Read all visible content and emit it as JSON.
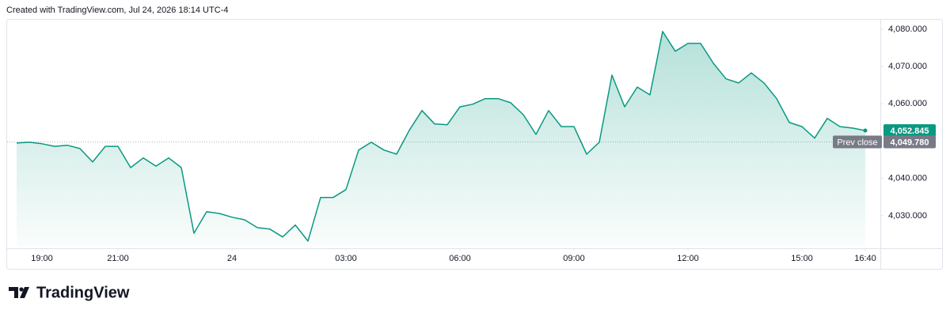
{
  "header": {
    "text": "Created with TradingView.com, Jul 24, 2026 18:14 UTC-4"
  },
  "footer": {
    "brand": "TradingView"
  },
  "chart_data": {
    "type": "area",
    "x": [
      "18:20",
      "18:40",
      "19:00",
      "19:20",
      "19:40",
      "20:00",
      "20:20",
      "20:40",
      "21:00",
      "21:20",
      "21:40",
      "22:00",
      "22:20",
      "22:40",
      "23:00",
      "23:20",
      "23:40",
      "00:00",
      "00:20",
      "00:40",
      "01:00",
      "01:20",
      "01:40",
      "02:00",
      "02:20",
      "02:40",
      "03:00",
      "03:20",
      "03:40",
      "04:00",
      "04:20",
      "04:40",
      "05:00",
      "05:20",
      "05:40",
      "06:00",
      "06:20",
      "06:40",
      "07:00",
      "07:20",
      "07:40",
      "08:00",
      "08:20",
      "08:40",
      "09:00",
      "09:20",
      "09:40",
      "10:00",
      "10:20",
      "10:40",
      "11:00",
      "11:20",
      "11:40",
      "12:00",
      "12:20",
      "12:40",
      "13:00",
      "13:20",
      "13:40",
      "14:00",
      "14:20",
      "14:40",
      "15:00",
      "15:20",
      "15:40",
      "16:00",
      "16:20",
      "16:40"
    ],
    "series": [
      {
        "color": "#089981",
        "values": [
          4049.5,
          4049.7,
          4049.3,
          4048.6,
          4048.9,
          4048.0,
          4044.4,
          4048.6,
          4048.6,
          4042.9,
          4045.5,
          4043.3,
          4045.5,
          4042.9,
          4025.3,
          4031.1,
          4030.6,
          4029.6,
          4028.9,
          4026.8,
          4026.4,
          4024.3,
          4027.5,
          4023.2,
          4034.9,
          4034.9,
          4037.0,
          4047.6,
          4049.7,
          4047.6,
          4046.5,
          4052.9,
          4058.2,
          4054.6,
          4054.4,
          4059.2,
          4059.9,
          4061.4,
          4061.4,
          4060.3,
          4057.1,
          4051.8,
          4058.2,
          4053.9,
          4053.9,
          4046.5,
          4049.7,
          4067.7,
          4059.2,
          4064.5,
          4062.4,
          4079.4,
          4074.1,
          4076.2,
          4076.2,
          4070.9,
          4066.7,
          4065.6,
          4068.3,
          4065.6,
          4061.4,
          4055.0,
          4053.9,
          4050.8,
          4056.1,
          4053.9,
          4053.5,
          4052.845
        ]
      }
    ],
    "xticks": [
      "19:00",
      "21:00",
      {
        "value": "00:00",
        "label": "24"
      },
      "03:00",
      "06:00",
      "09:00",
      "12:00",
      "15:00",
      "16:40"
    ],
    "ylim": [
      4021.7,
      4081.9
    ],
    "yticks": [
      {
        "value": 4030,
        "label": "4,030.000"
      },
      {
        "value": 4040,
        "label": "4,040.000"
      },
      {
        "value": 4060,
        "label": "4,060.000"
      },
      {
        "value": 4070,
        "label": "4,070.000"
      },
      {
        "value": 4080,
        "label": "4,080.000"
      }
    ],
    "grid": false,
    "last_price": {
      "value": 4052.845,
      "label": "4,052.845",
      "color": "#089981"
    },
    "prev_close": {
      "value": 4049.78,
      "label": "4,049.780",
      "name": "Prev close",
      "color": "#787b86"
    }
  }
}
